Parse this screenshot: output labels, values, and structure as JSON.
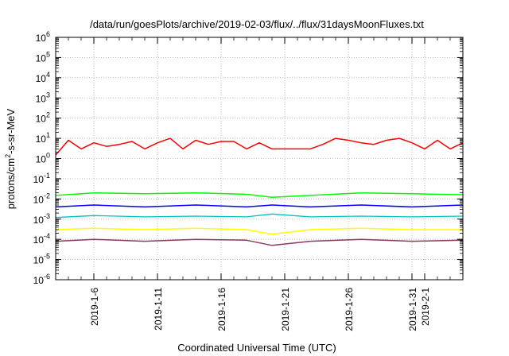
{
  "chart_data": {
    "type": "line",
    "title": "/data/run/goesPlots/archive/2019-02-03/flux/../flux/31daysMoonFluxes.txt",
    "xlabel": "Coordinated Universal Time (UTC)",
    "ylabel": {
      "pre": "protons/cm",
      "sup": "2",
      "post": "-s-sr-MeV"
    },
    "y_scale": "log",
    "ylim": [
      1e-06,
      1000000.0
    ],
    "y_ticks": [
      {
        "value": 1e-06,
        "base": "10",
        "exp": "-6"
      },
      {
        "value": 1e-05,
        "base": "10",
        "exp": "-5"
      },
      {
        "value": 0.0001,
        "base": "10",
        "exp": "-4"
      },
      {
        "value": 0.001,
        "base": "10",
        "exp": "-3"
      },
      {
        "value": 0.01,
        "base": "10",
        "exp": "-2"
      },
      {
        "value": 0.1,
        "base": "10",
        "exp": "-1"
      },
      {
        "value": 1,
        "base": "10",
        "exp": "0"
      },
      {
        "value": 10,
        "base": "10",
        "exp": "1"
      },
      {
        "value": 100,
        "base": "10",
        "exp": "2"
      },
      {
        "value": 1000,
        "base": "10",
        "exp": "3"
      },
      {
        "value": 10000,
        "base": "10",
        "exp": "4"
      },
      {
        "value": 100000,
        "base": "10",
        "exp": "5"
      },
      {
        "value": 1000000,
        "base": "10",
        "exp": "6"
      }
    ],
    "xlim": [
      "2019-01-03",
      "2019-02-04"
    ],
    "x_ticks": [
      {
        "date": "2019-01-06",
        "label": "2019-1-6"
      },
      {
        "date": "2019-01-11",
        "label": "2019-1-11"
      },
      {
        "date": "2019-01-16",
        "label": "2019-1-16"
      },
      {
        "date": "2019-01-21",
        "label": "2019-1-21"
      },
      {
        "date": "2019-01-26",
        "label": "2019-1-26"
      },
      {
        "date": "2019-01-31",
        "label": "2019-1-31"
      },
      {
        "date": "2019-02-01",
        "label": "2019-2-1"
      }
    ],
    "grid": true,
    "legend": "none",
    "data_gap": [
      "2019-01-20",
      "2019-01-23"
    ],
    "series": [
      {
        "color": "#ff0000",
        "width": 1.5,
        "x": [
          "2019-01-03",
          "2019-01-04",
          "2019-01-05",
          "2019-01-06",
          "2019-01-07",
          "2019-01-08",
          "2019-01-09",
          "2019-01-10",
          "2019-01-11",
          "2019-01-12",
          "2019-01-13",
          "2019-01-14",
          "2019-01-15",
          "2019-01-16",
          "2019-01-17",
          "2019-01-18",
          "2019-01-19",
          "2019-01-20",
          "2019-01-23",
          "2019-01-24",
          "2019-01-25",
          "2019-01-26",
          "2019-01-27",
          "2019-01-28",
          "2019-01-29",
          "2019-01-30",
          "2019-01-31",
          "2019-02-01",
          "2019-02-02",
          "2019-02-03",
          "2019-02-04"
        ],
        "values": [
          1.5,
          8,
          3,
          6,
          4,
          5,
          7,
          3,
          6,
          10,
          3,
          8,
          5,
          7,
          7,
          3,
          6,
          3,
          3,
          5,
          10,
          8,
          6,
          5,
          8,
          10,
          6,
          3,
          8,
          3,
          6
        ]
      },
      {
        "color": "#00ff00",
        "width": 1.5,
        "x": [
          "2019-01-03",
          "2019-01-06",
          "2019-01-10",
          "2019-01-14",
          "2019-01-18",
          "2019-01-20",
          "2019-01-23",
          "2019-01-27",
          "2019-01-31",
          "2019-02-04"
        ],
        "values": [
          0.015,
          0.02,
          0.018,
          0.02,
          0.017,
          0.012,
          0.015,
          0.02,
          0.018,
          0.016
        ]
      },
      {
        "color": "#0000ff",
        "width": 1.5,
        "x": [
          "2019-01-03",
          "2019-01-06",
          "2019-01-10",
          "2019-01-14",
          "2019-01-18",
          "2019-01-20",
          "2019-01-23",
          "2019-01-27",
          "2019-01-31",
          "2019-02-04"
        ],
        "values": [
          0.004,
          0.005,
          0.004,
          0.005,
          0.004,
          0.005,
          0.004,
          0.005,
          0.004,
          0.005
        ]
      },
      {
        "color": "#00c0c0",
        "width": 1.3,
        "x": [
          "2019-01-03",
          "2019-01-06",
          "2019-01-10",
          "2019-01-14",
          "2019-01-18",
          "2019-01-20",
          "2019-01-23",
          "2019-01-27",
          "2019-01-31",
          "2019-02-04"
        ],
        "values": [
          0.0012,
          0.0015,
          0.0013,
          0.0014,
          0.0013,
          0.0018,
          0.0013,
          0.0014,
          0.0013,
          0.0014
        ]
      },
      {
        "color": "#ffff00",
        "width": 1.5,
        "x": [
          "2019-01-03",
          "2019-01-06",
          "2019-01-10",
          "2019-01-14",
          "2019-01-18",
          "2019-01-20",
          "2019-01-23",
          "2019-01-27",
          "2019-01-31",
          "2019-02-04"
        ],
        "values": [
          0.0003,
          0.00035,
          0.0003,
          0.00035,
          0.0003,
          0.00018,
          0.0003,
          0.00035,
          0.0003,
          0.0003
        ]
      },
      {
        "color": "#8b3a62",
        "width": 1.5,
        "x": [
          "2019-01-03",
          "2019-01-06",
          "2019-01-10",
          "2019-01-14",
          "2019-01-18",
          "2019-01-20",
          "2019-01-23",
          "2019-01-27",
          "2019-01-31",
          "2019-02-04"
        ],
        "values": [
          8e-05,
          0.0001,
          8e-05,
          0.0001,
          9e-05,
          5e-05,
          8e-05,
          0.0001,
          8e-05,
          9e-05
        ]
      }
    ]
  }
}
